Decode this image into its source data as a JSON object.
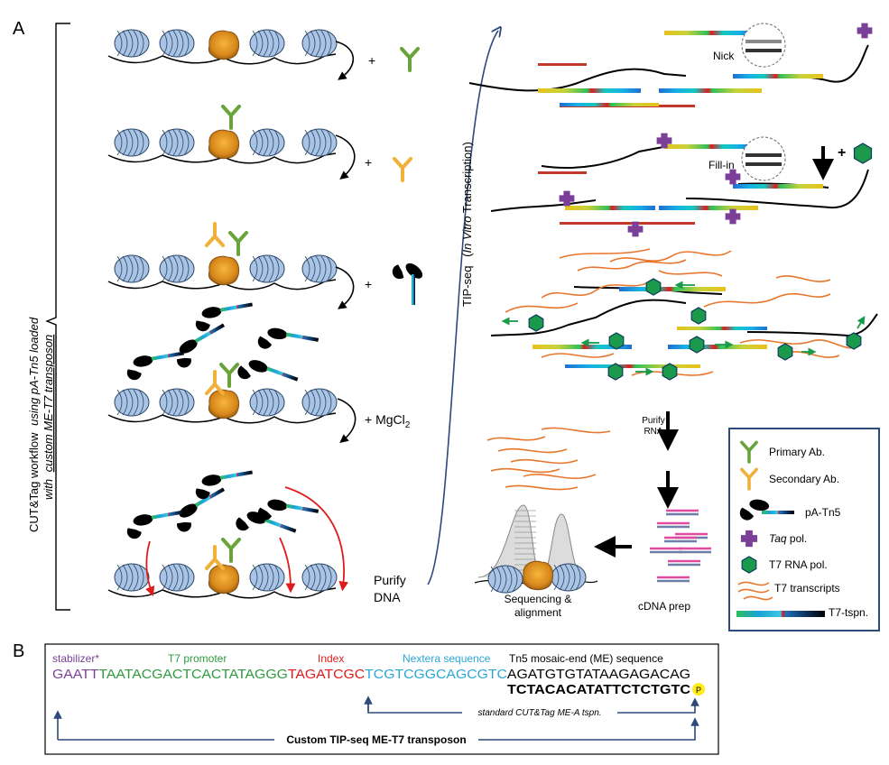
{
  "panel_a": {
    "label": "A",
    "side_label_1": "CUT&Tag workflow",
    "side_label_2": "using pA-Tn5 loaded",
    "side_label_3": "with",
    "side_label_4": "custom ME-T7 transposon",
    "tip_label_1": "TIP-seq",
    "tip_label_2": "(",
    "tip_label_3": "In Vitro",
    "tip_label_4": "Transcription)",
    "plus_primary": "+",
    "plus_secondary": "+",
    "plus_tn5": "+",
    "plus_mgcl2": "+ MgCl",
    "mgcl2_sub": "2",
    "purify_dna_1": "Purify",
    "purify_dna_2": "DNA",
    "nick": "Nick",
    "fill_in": "Fill-in",
    "plus_t7": "+",
    "purify_rna_1": "Purify",
    "purify_rna_2": "RNA",
    "cdna_prep": "cDNA prep",
    "sequencing_1": "Sequencing &",
    "sequencing_2": "alignment"
  },
  "legend": {
    "primary": "Primary Ab.",
    "secondary": "Secondary Ab.",
    "pa_tn5": "pA-Tn5",
    "taq_1": "Taq",
    "taq_2": "pol.",
    "t7_pol": "T7 RNA pol.",
    "t7_transcripts": "T7 transcripts",
    "t7_tspn": "T7-tspn."
  },
  "panel_b": {
    "label": "B",
    "stabilizer_label": "stabilizer*",
    "t7_promoter_label": "T7 promoter",
    "index_label": "Index",
    "nextera_label": "Nextera sequence",
    "me_label": "Tn5 mosaic-end (ME) sequence",
    "seq_stabilizer": "GAATT",
    "seq_t7": "TAATACGACTCACTATAGGG",
    "seq_index": "TAGATCGC",
    "seq_nextera": "TCGTCGGCAGCGTC",
    "seq_me": "AGATGTGTATAAGAGACAG",
    "seq_bottom": "TCTACACATATTCTCTGTC",
    "phosphate": "P",
    "standard_tspn": "standard CUT&Tag ME-A tspn.",
    "custom_tspn": "Custom TIP-seq ME-T7 transposon"
  },
  "colors": {
    "nucleosome": "#a9c4e4",
    "primary_ab": "#6aa33a",
    "secondary_ab": "#f0b13a",
    "taq": "#7b3f98",
    "t7_pol": "#1a9a4a",
    "transcript": "#e8762c",
    "arrow_red": "#e01b1b",
    "frame": "#2d4a7a",
    "stabilizer": "#7b3f98",
    "t7_seq": "#2f9a3e",
    "index_seq": "#e01b1b",
    "nextera_seq": "#2aa7d6"
  }
}
